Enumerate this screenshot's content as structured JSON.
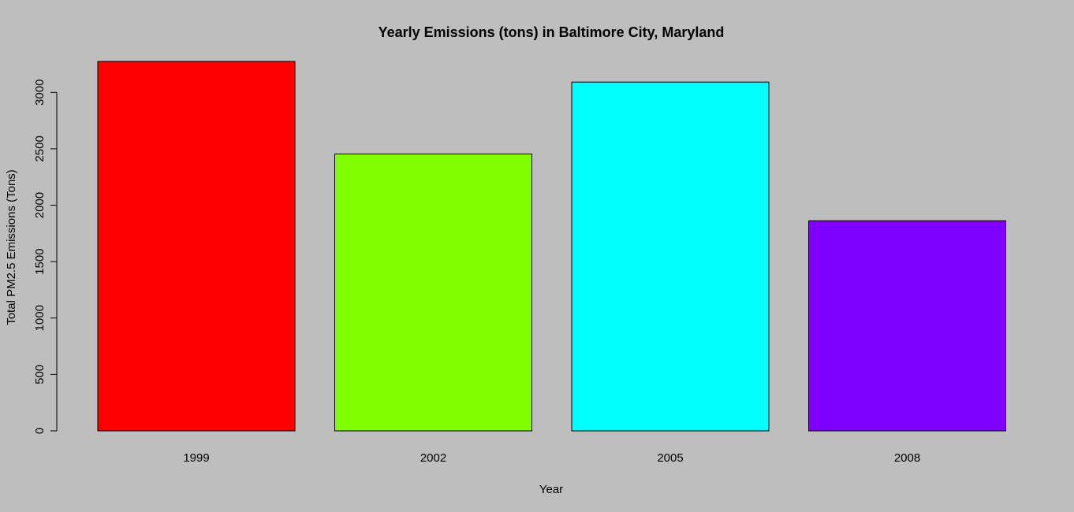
{
  "chart_data": {
    "type": "bar",
    "title": "Yearly Emissions (tons) in Baltimore City, Maryland",
    "xlabel": "Year",
    "ylabel": "Total PM2.5 Emissions (Tons)",
    "categories": [
      "1999",
      "2002",
      "2005",
      "2008"
    ],
    "values": [
      3274.18,
      2453.92,
      3091.35,
      1862.28
    ],
    "colors": [
      "#FF0000",
      "#80FF00",
      "#00FFFF",
      "#8000FF"
    ],
    "yticks": [
      0,
      500,
      1000,
      1500,
      2000,
      2500,
      3000
    ],
    "ylim": [
      0,
      3274.18
    ],
    "background": "#BEBEBE",
    "grid": false,
    "legend": "none"
  }
}
